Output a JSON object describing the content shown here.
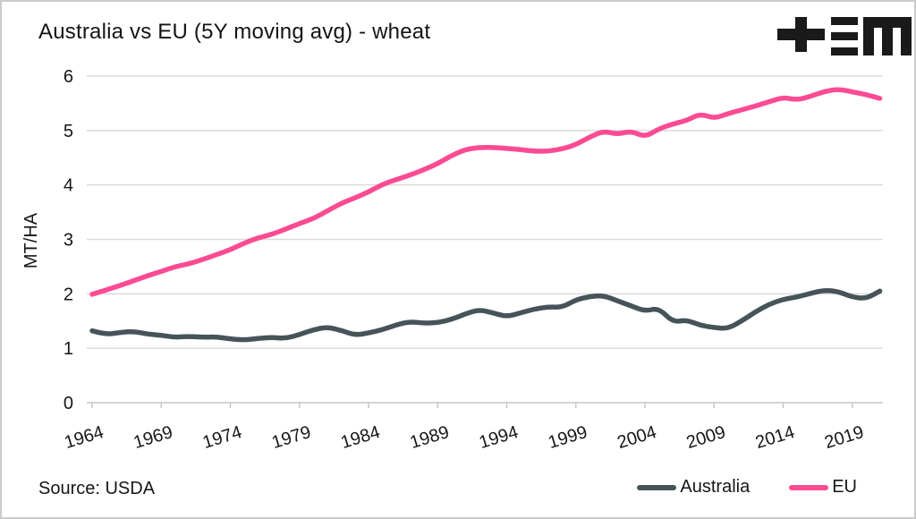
{
  "header": {
    "title": "Australia vs EU (5Y moving avg) - wheat"
  },
  "logo": {
    "glyphs": "+≡M",
    "color": "#1a1a1a"
  },
  "footer": {
    "source": "Source: USDA"
  },
  "legend": {
    "items": [
      {
        "label": "Australia",
        "color": "#46545a"
      },
      {
        "label": "EU",
        "color": "#fb4b94"
      }
    ]
  },
  "colors": {
    "background": "#ffffff",
    "border": "#cbcbcb",
    "grid": "#dbdbdb",
    "axis": "#c6c6c6",
    "text": "#161616",
    "australia_line": "#46545a",
    "eu_line": "#fb4b94"
  },
  "chart_data": {
    "type": "line",
    "title": "Australia vs EU (5Y moving avg) - wheat",
    "xlabel": "",
    "ylabel": "MT/HA",
    "ylim": [
      0,
      6
    ],
    "yticks": [
      0,
      1,
      2,
      3,
      4,
      5,
      6
    ],
    "xticks": [
      1964,
      1969,
      1974,
      1979,
      1984,
      1989,
      1994,
      1999,
      2004,
      2009,
      2014,
      2019
    ],
    "x_range": [
      1964,
      2021
    ],
    "grid": true,
    "legend_position": "bottom-right",
    "x": [
      1964,
      1965,
      1966,
      1967,
      1968,
      1969,
      1970,
      1971,
      1972,
      1973,
      1974,
      1975,
      1976,
      1977,
      1978,
      1979,
      1980,
      1981,
      1982,
      1983,
      1984,
      1985,
      1986,
      1987,
      1988,
      1989,
      1990,
      1991,
      1992,
      1993,
      1994,
      1995,
      1996,
      1997,
      1998,
      1999,
      2000,
      2001,
      2002,
      2003,
      2004,
      2005,
      2006,
      2007,
      2008,
      2009,
      2010,
      2011,
      2012,
      2013,
      2014,
      2015,
      2016,
      2017,
      2018,
      2019,
      2020,
      2021
    ],
    "series": [
      {
        "name": "Australia",
        "color": "#46545a",
        "values": [
          1.32,
          1.25,
          1.29,
          1.31,
          1.26,
          1.24,
          1.2,
          1.22,
          1.2,
          1.21,
          1.17,
          1.15,
          1.18,
          1.2,
          1.18,
          1.25,
          1.34,
          1.39,
          1.33,
          1.24,
          1.28,
          1.34,
          1.43,
          1.49,
          1.46,
          1.47,
          1.53,
          1.63,
          1.71,
          1.65,
          1.58,
          1.65,
          1.72,
          1.76,
          1.75,
          1.89,
          1.95,
          1.97,
          1.87,
          1.78,
          1.68,
          1.74,
          1.48,
          1.52,
          1.42,
          1.38,
          1.36,
          1.5,
          1.67,
          1.81,
          1.9,
          1.94,
          2.01,
          2.07,
          2.04,
          1.94,
          1.91,
          2.05
        ]
      },
      {
        "name": "EU",
        "color": "#fb4b94",
        "values": [
          1.99,
          2.07,
          2.15,
          2.24,
          2.33,
          2.41,
          2.5,
          2.55,
          2.63,
          2.72,
          2.81,
          2.93,
          3.03,
          3.09,
          3.19,
          3.29,
          3.38,
          3.52,
          3.66,
          3.76,
          3.87,
          4.01,
          4.1,
          4.18,
          4.28,
          4.39,
          4.54,
          4.65,
          4.69,
          4.69,
          4.67,
          4.65,
          4.62,
          4.62,
          4.66,
          4.74,
          4.88,
          4.99,
          4.93,
          4.99,
          4.88,
          5.03,
          5.12,
          5.18,
          5.31,
          5.22,
          5.31,
          5.38,
          5.45,
          5.53,
          5.61,
          5.56,
          5.63,
          5.72,
          5.76,
          5.71,
          5.66,
          5.59
        ]
      }
    ]
  }
}
